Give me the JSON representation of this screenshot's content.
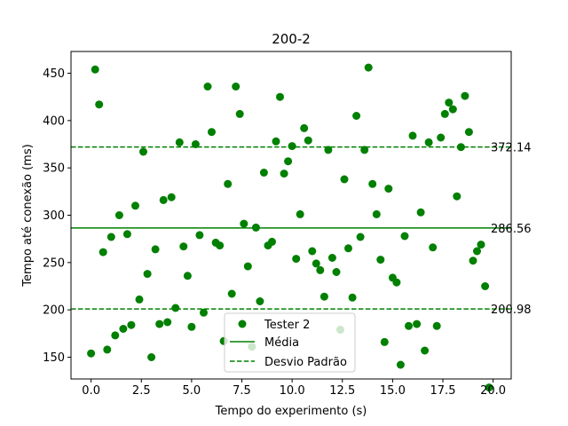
{
  "chart_data": {
    "type": "scatter",
    "title": "200-2",
    "xlabel": "Tempo do experimento (s)",
    "ylabel": "Tempo até conexão (ms)",
    "xlim": [
      -1.0,
      20.9
    ],
    "ylim": [
      127,
      473
    ],
    "xticks": [
      0.0,
      2.5,
      5.0,
      7.5,
      10.0,
      12.5,
      15.0,
      17.5,
      20.0
    ],
    "xtick_labels": [
      "0.0",
      "2.5",
      "5.0",
      "7.5",
      "10.0",
      "12.5",
      "15.0",
      "17.5",
      "20.0"
    ],
    "yticks": [
      150,
      200,
      250,
      300,
      350,
      400,
      450
    ],
    "ytick_labels": [
      "150",
      "200",
      "250",
      "300",
      "350",
      "400",
      "450"
    ],
    "grid": false,
    "legend_position": "bottom-center",
    "colors": {
      "points": "#008000",
      "lines": "#008000"
    },
    "series": [
      {
        "name": "Tester 2",
        "points": [
          [
            0.0,
            154
          ],
          [
            0.2,
            454
          ],
          [
            0.4,
            417
          ],
          [
            0.6,
            261
          ],
          [
            0.8,
            158
          ],
          [
            1.0,
            277
          ],
          [
            1.2,
            173
          ],
          [
            1.4,
            300
          ],
          [
            1.6,
            180
          ],
          [
            1.8,
            280
          ],
          [
            2.0,
            184
          ],
          [
            2.2,
            310
          ],
          [
            2.4,
            211
          ],
          [
            2.6,
            367
          ],
          [
            2.8,
            238
          ],
          [
            3.0,
            150
          ],
          [
            3.2,
            264
          ],
          [
            3.4,
            185
          ],
          [
            3.6,
            316
          ],
          [
            3.8,
            187
          ],
          [
            4.0,
            319
          ],
          [
            4.2,
            202
          ],
          [
            4.4,
            377
          ],
          [
            4.6,
            267
          ],
          [
            4.8,
            236
          ],
          [
            5.0,
            182
          ],
          [
            5.2,
            375
          ],
          [
            5.4,
            279
          ],
          [
            5.6,
            197
          ],
          [
            5.8,
            436
          ],
          [
            6.0,
            388
          ],
          [
            6.2,
            271
          ],
          [
            6.4,
            268
          ],
          [
            6.6,
            167
          ],
          [
            6.8,
            333
          ],
          [
            7.0,
            217
          ],
          [
            7.2,
            436
          ],
          [
            7.4,
            407
          ],
          [
            7.6,
            291
          ],
          [
            7.8,
            246
          ],
          [
            8.0,
            161
          ],
          [
            8.2,
            287
          ],
          [
            8.4,
            209
          ],
          [
            8.6,
            345
          ],
          [
            8.8,
            268
          ],
          [
            9.0,
            272
          ],
          [
            9.2,
            378
          ],
          [
            9.4,
            425
          ],
          [
            9.6,
            344
          ],
          [
            9.8,
            357
          ],
          [
            10.0,
            373
          ],
          [
            10.2,
            254
          ],
          [
            10.4,
            301
          ],
          [
            10.6,
            392
          ],
          [
            10.8,
            379
          ],
          [
            11.0,
            262
          ],
          [
            11.2,
            249
          ],
          [
            11.4,
            242
          ],
          [
            11.6,
            214
          ],
          [
            11.8,
            369
          ],
          [
            12.0,
            255
          ],
          [
            12.2,
            240
          ],
          [
            12.4,
            179
          ],
          [
            12.6,
            338
          ],
          [
            12.8,
            265
          ],
          [
            13.0,
            213
          ],
          [
            13.2,
            405
          ],
          [
            13.4,
            277
          ],
          [
            13.6,
            369
          ],
          [
            13.8,
            456
          ],
          [
            14.0,
            333
          ],
          [
            14.2,
            301
          ],
          [
            14.4,
            253
          ],
          [
            14.6,
            166
          ],
          [
            14.8,
            328
          ],
          [
            15.0,
            234
          ],
          [
            15.2,
            229
          ],
          [
            15.4,
            142
          ],
          [
            15.6,
            278
          ],
          [
            15.8,
            183
          ],
          [
            16.0,
            384
          ],
          [
            16.2,
            185
          ],
          [
            16.4,
            303
          ],
          [
            16.6,
            157
          ],
          [
            16.8,
            377
          ],
          [
            17.0,
            266
          ],
          [
            17.2,
            183
          ],
          [
            17.4,
            382
          ],
          [
            17.6,
            407
          ],
          [
            17.8,
            419
          ],
          [
            18.0,
            412
          ],
          [
            18.2,
            320
          ],
          [
            18.4,
            372
          ],
          [
            18.6,
            426
          ],
          [
            18.8,
            388
          ],
          [
            19.0,
            252
          ],
          [
            19.2,
            262
          ],
          [
            19.4,
            269
          ],
          [
            19.6,
            225
          ],
          [
            19.8,
            118
          ]
        ]
      },
      {
        "name": "Média",
        "type": "hline",
        "value": 286.56,
        "style": "solid"
      },
      {
        "name": "Desvio Padrão",
        "type": "hline",
        "values": [
          372.14,
          200.98
        ],
        "style": "dashed"
      }
    ],
    "reference_labels": [
      "372.14",
      "286.56",
      "200.98"
    ]
  }
}
